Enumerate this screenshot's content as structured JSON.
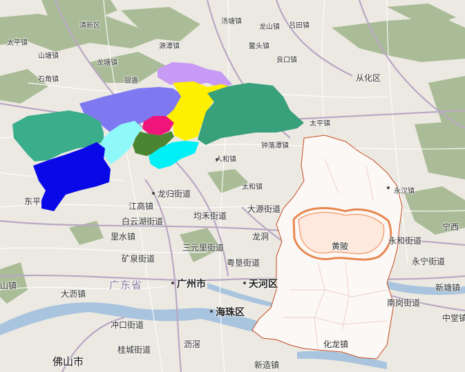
{
  "labels": [
    {
      "text": "清新区",
      "size": "sm"
    },
    {
      "text": "太平镇",
      "size": "sm"
    },
    {
      "text": "山塘镇",
      "size": "sm"
    },
    {
      "text": "石角镇",
      "size": "sm"
    },
    {
      "text": "龙塘镇",
      "size": "sm"
    },
    {
      "text": "银盏",
      "size": "sm"
    },
    {
      "text": "源潭镇",
      "size": "sm"
    },
    {
      "text": "汤塘镇",
      "size": "sm"
    },
    {
      "text": "龙山镇",
      "size": "sm"
    },
    {
      "text": "吕田镇",
      "size": "sm"
    },
    {
      "text": "良口镇",
      "size": "sm"
    },
    {
      "text": "鳌头镇",
      "size": "sm"
    },
    {
      "text": "从化区",
      "size": "md"
    },
    {
      "text": "太平镇",
      "size": "sm"
    },
    {
      "text": "钟落潭镇",
      "size": "sm"
    },
    {
      "text": "人和镇",
      "size": "sm"
    },
    {
      "text": "太和镇",
      "size": "sm"
    },
    {
      "text": "龙归街道",
      "size": "md"
    },
    {
      "text": "江高镇",
      "size": "md"
    },
    {
      "text": "均禾街道",
      "size": "md"
    },
    {
      "text": "白云湖街道",
      "size": "md"
    },
    {
      "text": "大源街道",
      "size": "md"
    },
    {
      "text": "龙洞",
      "size": "md"
    },
    {
      "text": "里水镇",
      "size": "md"
    },
    {
      "text": "三元里街道",
      "size": "md"
    },
    {
      "text": "矿泉街道",
      "size": "md"
    },
    {
      "text": "粤垦街道",
      "size": "md"
    },
    {
      "text": "广东省",
      "size": "prov"
    },
    {
      "text": "广州市",
      "size": "lg"
    },
    {
      "text": "天河区",
      "size": "lg"
    },
    {
      "text": "大沥镇",
      "size": "md"
    },
    {
      "text": "海珠区",
      "size": "lg"
    },
    {
      "text": "冲口街道",
      "size": "md"
    },
    {
      "text": "桂城街道",
      "size": "md"
    },
    {
      "text": "沥滘",
      "size": "md"
    },
    {
      "text": "佛山市",
      "size": "xl"
    },
    {
      "text": "新造镇",
      "size": "md"
    },
    {
      "text": "化龙镇",
      "size": "md"
    },
    {
      "text": "永和街道",
      "size": "md"
    },
    {
      "text": "永宁街道",
      "size": "md"
    },
    {
      "text": "南岗街道",
      "size": "md"
    },
    {
      "text": "新塘镇",
      "size": "md"
    },
    {
      "text": "中堂镇",
      "size": "md"
    },
    {
      "text": "宁西",
      "size": "md"
    },
    {
      "text": "山镇",
      "size": "md"
    },
    {
      "text": "东平",
      "size": "md"
    },
    {
      "text": "黄陂",
      "size": "md"
    },
    {
      "text": "永汉镇",
      "size": "sm"
    }
  ],
  "colors": {
    "base": "#ece9e2",
    "green_area": "#9fb58a",
    "water": "#a9c4de",
    "road_major": "#b9a7c4",
    "road_minor": "#ffffff",
    "region_teal": "#3aad8a",
    "region_green": "#38a07a",
    "region_periwinkle": "#7e79f0",
    "region_lavender": "#c79af5",
    "region_yellow": "#ffef00",
    "region_magenta": "#ef157a",
    "region_olive": "#4c8532",
    "region_lightcyan": "#8ff8f8",
    "region_cyan": "#00f0f6",
    "region_blue": "#0909e8",
    "heat_edge": "#d2501a"
  }
}
